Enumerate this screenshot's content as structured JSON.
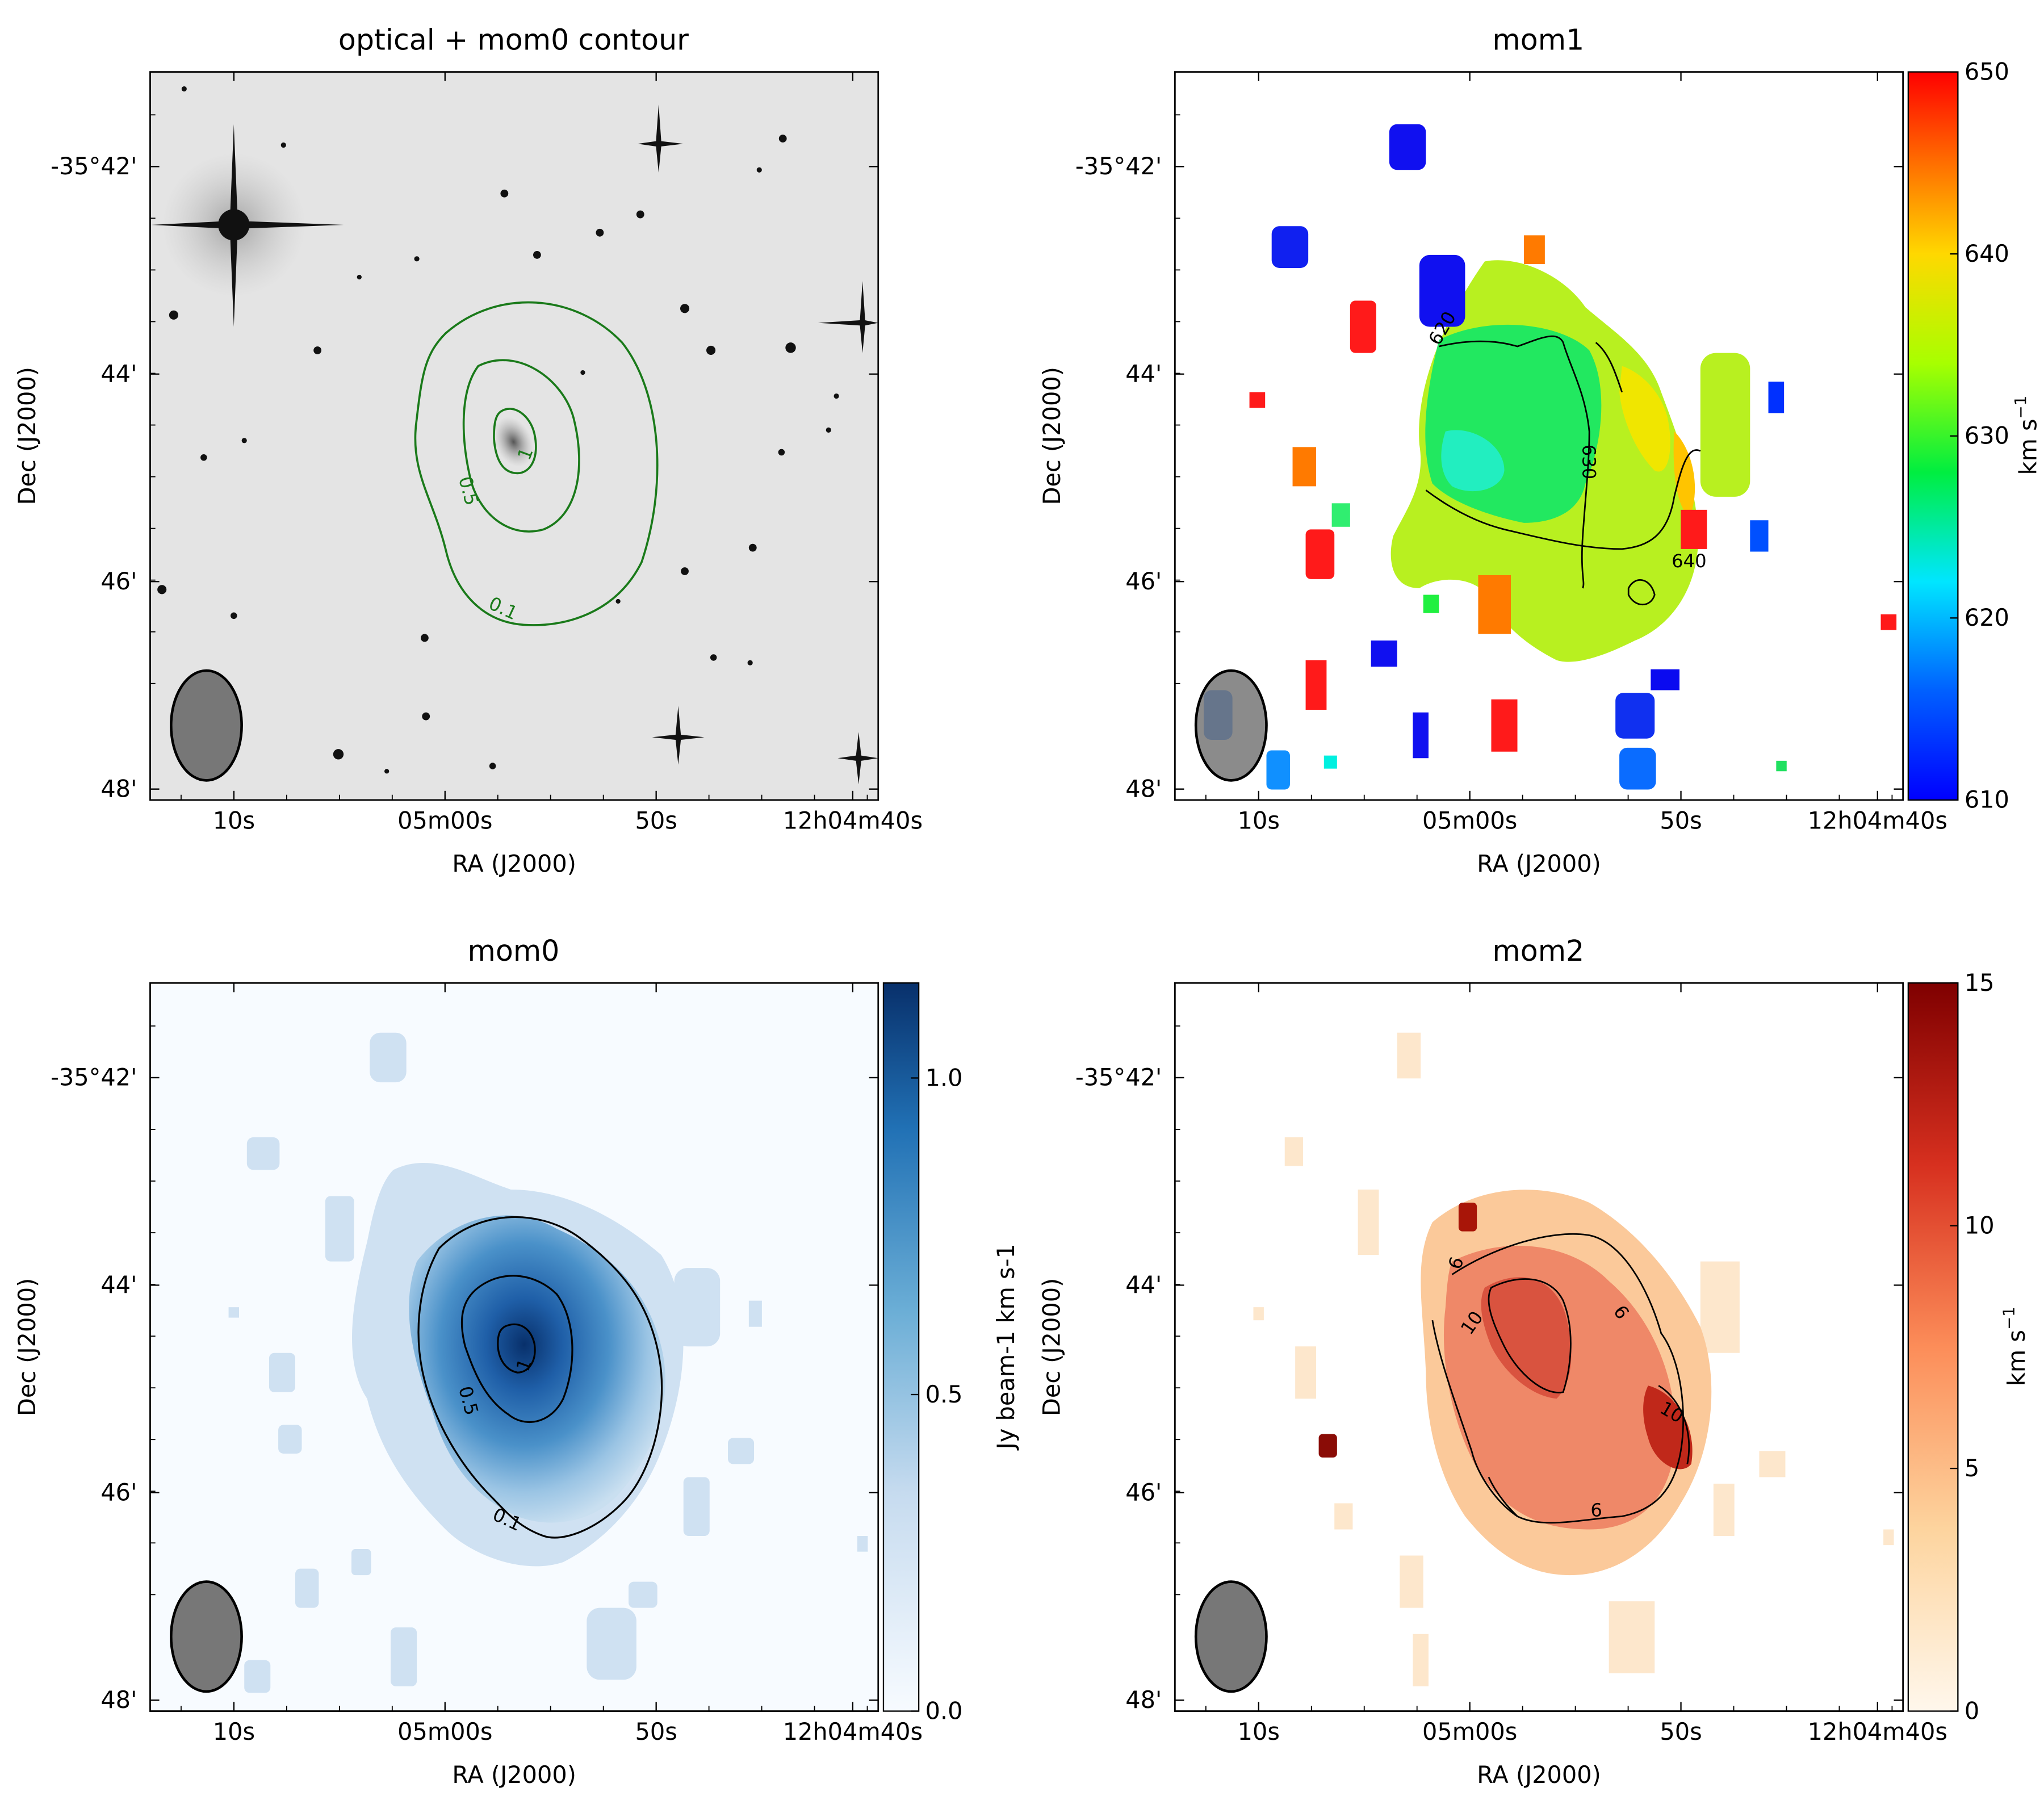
{
  "figure": {
    "ra_tick_labels": [
      "10s",
      "05m00s",
      "50s",
      "12h04m40s"
    ],
    "dec_tick_labels": [
      "-35°42'",
      "44'",
      "46'",
      "48'"
    ],
    "xlabel": "RA (J2000)",
    "ylabel": "Dec (J2000)"
  },
  "chart_data": [
    {
      "id": "optical",
      "type": "heatmap",
      "title": "optical + mom0 contour",
      "xlabel": "RA (J2000)",
      "ylabel": "Dec (J2000)",
      "contour_color": "#1a7a1a",
      "contour_levels": [
        0.1,
        0.5,
        1
      ],
      "contour_labels": [
        "0.1",
        "0.5",
        "1"
      ],
      "beam": "ellipse lower-left",
      "background": "grey optical image with stars"
    },
    {
      "id": "mom1",
      "type": "heatmap",
      "title": "mom1",
      "xlabel": "RA (J2000)",
      "ylabel": "Dec (J2000)",
      "colormap": "jet",
      "colorbar": {
        "min": 610,
        "max": 650,
        "ticks": [
          610,
          620,
          630,
          640,
          650
        ],
        "label": "km s-1",
        "label_base": "km s",
        "label_sup": "−1"
      },
      "contour_levels": [
        620,
        630,
        640
      ],
      "contour_labels": [
        "620",
        "630",
        "640"
      ]
    },
    {
      "id": "mom0",
      "type": "heatmap",
      "title": "mom0",
      "xlabel": "RA (J2000)",
      "ylabel": "Dec (J2000)",
      "colormap": "Blues",
      "colorbar": {
        "min": 0.0,
        "max": 1.15,
        "ticks": [
          0.0,
          0.5,
          1.0
        ],
        "tick_labels": [
          "0.0",
          "0.5",
          "1.0"
        ],
        "label": "Jy beam-1 km s-1"
      },
      "contour_levels": [
        0.1,
        0.5,
        1
      ],
      "contour_labels": [
        "0.1",
        "0.5",
        "1"
      ]
    },
    {
      "id": "mom2",
      "type": "heatmap",
      "title": "mom2",
      "xlabel": "RA (J2000)",
      "ylabel": "Dec (J2000)",
      "colormap": "OrRd",
      "colorbar": {
        "min": 0,
        "max": 15,
        "ticks": [
          0,
          5,
          10,
          15
        ],
        "label": "km s-1",
        "label_base": "km s",
        "label_sup": "−1"
      },
      "contour_levels": [
        6,
        10
      ],
      "contour_labels": [
        "6",
        "10"
      ]
    }
  ]
}
